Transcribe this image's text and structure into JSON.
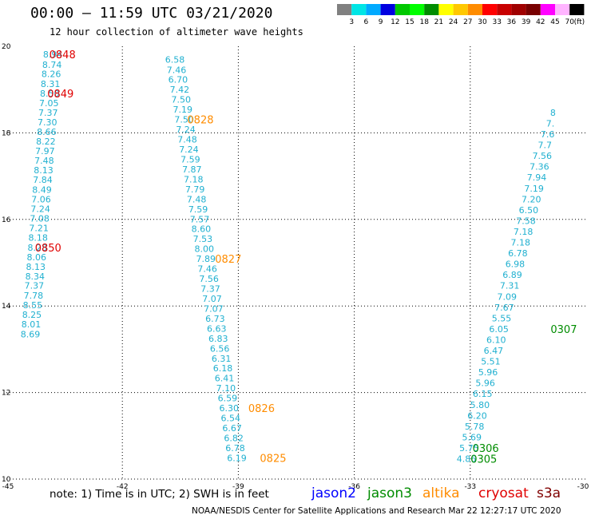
{
  "header": {
    "title": "00:00 – 11:59 UTC 03/21/2020",
    "subtitle": "12 hour collection of altimeter wave heights"
  },
  "legend_scale": {
    "labels": [
      "3",
      "6",
      "9",
      "12",
      "15",
      "18",
      "21",
      "24",
      "27",
      "30",
      "33",
      "36",
      "39",
      "42",
      "45",
      "70",
      "(ft)"
    ],
    "colors": [
      "#808080",
      "#00e5e5",
      "#00aaff",
      "#0000e0",
      "#00c800",
      "#00ff00",
      "#008c00",
      "#ffff00",
      "#ffc800",
      "#ff8c00",
      "#ff0000",
      "#c80000",
      "#a00000",
      "#780000",
      "#ff00ff",
      "#ffb4ff",
      "#000000"
    ]
  },
  "footer": {
    "note": "note:  1) Time is in UTC;  2) SWH is in feet",
    "missions": [
      {
        "name": "jason2",
        "color": "#0000ff"
      },
      {
        "name": "jason3",
        "color": "#008c00"
      },
      {
        "name": "altika",
        "color": "#ff8c00"
      },
      {
        "name": "cryosat",
        "color": "#e00000"
      },
      {
        "name": "s3a",
        "color": "#800000"
      }
    ],
    "credit": "NOAA/NESDIS Center for Satellite Applications and Research     Mar 22 12:27:17 UTC 2020"
  },
  "chart_data": {
    "type": "scatter",
    "title": "00:00 – 11:59 UTC 03/21/2020",
    "subtitle": "12 hour collection of altimeter wave heights",
    "xlabel": "",
    "ylabel": "",
    "xlim": [
      -45,
      -30
    ],
    "ylim": [
      10,
      20
    ],
    "x_ticks": [
      "-45",
      "-42",
      "-39",
      "-36",
      "-33",
      "-30"
    ],
    "y_ticks": [
      "20",
      "18",
      "16",
      "14",
      "12",
      "10"
    ],
    "grid": true,
    "value_color": "#20b0d0",
    "tracks": [
      {
        "name": "cryosat",
        "color": "#e00000",
        "points": [
          {
            "x": -43.8,
            "y": 19.82,
            "v": "8.94"
          },
          {
            "x": -43.82,
            "y": 19.58,
            "v": "8.74"
          },
          {
            "x": -43.84,
            "y": 19.36,
            "v": "8.26"
          },
          {
            "x": -43.86,
            "y": 19.13,
            "v": "8.31"
          },
          {
            "x": -43.88,
            "y": 18.91,
            "v": "8.50"
          },
          {
            "x": -43.9,
            "y": 18.69,
            "v": "7.05"
          },
          {
            "x": -43.92,
            "y": 18.47,
            "v": "7.37"
          },
          {
            "x": -43.94,
            "y": 18.25,
            "v": "7.30"
          },
          {
            "x": -43.96,
            "y": 18.03,
            "v": "8.66"
          },
          {
            "x": -43.98,
            "y": 17.8,
            "v": "8.22"
          },
          {
            "x": -44.0,
            "y": 17.58,
            "v": "7.97"
          },
          {
            "x": -44.02,
            "y": 17.36,
            "v": "7.48"
          },
          {
            "x": -44.04,
            "y": 17.14,
            "v": "8.13"
          },
          {
            "x": -44.06,
            "y": 16.92,
            "v": "7.84"
          },
          {
            "x": -44.08,
            "y": 16.69,
            "v": "8.49"
          },
          {
            "x": -44.1,
            "y": 16.47,
            "v": "7.06"
          },
          {
            "x": -44.12,
            "y": 16.25,
            "v": "7.24"
          },
          {
            "x": -44.14,
            "y": 16.02,
            "v": "7.08"
          },
          {
            "x": -44.16,
            "y": 15.8,
            "v": "7.21"
          },
          {
            "x": -44.18,
            "y": 15.58,
            "v": "8.18"
          },
          {
            "x": -44.2,
            "y": 15.35,
            "v": "8.28"
          },
          {
            "x": -44.22,
            "y": 15.13,
            "v": "8.06"
          },
          {
            "x": -44.24,
            "y": 14.91,
            "v": "8.13"
          },
          {
            "x": -44.26,
            "y": 14.69,
            "v": "8.34"
          },
          {
            "x": -44.28,
            "y": 14.47,
            "v": "7.37"
          },
          {
            "x": -44.3,
            "y": 14.24,
            "v": "7.78"
          },
          {
            "x": -44.32,
            "y": 14.02,
            "v": "8.55"
          },
          {
            "x": -44.34,
            "y": 13.8,
            "v": "8.25"
          },
          {
            "x": -44.36,
            "y": 13.58,
            "v": "8.01"
          },
          {
            "x": -44.38,
            "y": 13.35,
            "v": "8.69"
          }
        ],
        "times": [
          {
            "x": -43.55,
            "y": 19.82,
            "label": "0848"
          },
          {
            "x": -43.6,
            "y": 18.91,
            "label": "0849"
          },
          {
            "x": -43.92,
            "y": 15.35,
            "label": "0850"
          }
        ]
      },
      {
        "name": "altika",
        "color": "#ff8c00",
        "points": [
          {
            "x": -40.64,
            "y": 19.7,
            "v": "6.58"
          },
          {
            "x": -40.6,
            "y": 19.46,
            "v": "7.46"
          },
          {
            "x": -40.56,
            "y": 19.23,
            "v": "6.70"
          },
          {
            "x": -40.52,
            "y": 19.0,
            "v": "7.42"
          },
          {
            "x": -40.48,
            "y": 18.77,
            "v": "7.50"
          },
          {
            "x": -40.44,
            "y": 18.54,
            "v": "7.19"
          },
          {
            "x": -40.4,
            "y": 18.31,
            "v": "7.50"
          },
          {
            "x": -40.36,
            "y": 18.08,
            "v": "7.24"
          },
          {
            "x": -40.32,
            "y": 17.85,
            "v": "7.48"
          },
          {
            "x": -40.28,
            "y": 17.62,
            "v": "7.24"
          },
          {
            "x": -40.24,
            "y": 17.39,
            "v": "7.59"
          },
          {
            "x": -40.2,
            "y": 17.16,
            "v": "7.87"
          },
          {
            "x": -40.16,
            "y": 16.93,
            "v": "7.18"
          },
          {
            "x": -40.12,
            "y": 16.7,
            "v": "7.79"
          },
          {
            "x": -40.08,
            "y": 16.47,
            "v": "7.48"
          },
          {
            "x": -40.04,
            "y": 16.24,
            "v": "7.59"
          },
          {
            "x": -40.0,
            "y": 16.01,
            "v": "7.57"
          },
          {
            "x": -39.96,
            "y": 15.78,
            "v": "8.60"
          },
          {
            "x": -39.92,
            "y": 15.55,
            "v": "7.53"
          },
          {
            "x": -39.88,
            "y": 15.32,
            "v": "8.00"
          },
          {
            "x": -39.84,
            "y": 15.09,
            "v": "7.89"
          },
          {
            "x": -39.8,
            "y": 14.86,
            "v": "7.46"
          },
          {
            "x": -39.76,
            "y": 14.63,
            "v": "7.56"
          },
          {
            "x": -39.72,
            "y": 14.4,
            "v": "7.37"
          },
          {
            "x": -39.68,
            "y": 14.17,
            "v": "7.07"
          },
          {
            "x": -39.64,
            "y": 13.94,
            "v": "7.07"
          },
          {
            "x": -39.6,
            "y": 13.71,
            "v": "6.73"
          },
          {
            "x": -39.56,
            "y": 13.48,
            "v": "6.63"
          },
          {
            "x": -39.52,
            "y": 13.25,
            "v": "6.83"
          },
          {
            "x": -39.48,
            "y": 13.02,
            "v": "6.56"
          },
          {
            "x": -39.44,
            "y": 12.79,
            "v": "6.31"
          },
          {
            "x": -39.4,
            "y": 12.56,
            "v": "6.18"
          },
          {
            "x": -39.36,
            "y": 12.33,
            "v": "6.41"
          },
          {
            "x": -39.32,
            "y": 12.1,
            "v": "7.10"
          },
          {
            "x": -39.28,
            "y": 11.87,
            "v": "6.59"
          },
          {
            "x": -39.24,
            "y": 11.64,
            "v": "6.30"
          },
          {
            "x": -39.2,
            "y": 11.41,
            "v": "6.54"
          },
          {
            "x": -39.16,
            "y": 11.18,
            "v": "6.67"
          },
          {
            "x": -39.12,
            "y": 10.95,
            "v": "6.82"
          },
          {
            "x": -39.08,
            "y": 10.72,
            "v": "6.78"
          },
          {
            "x": -39.04,
            "y": 10.49,
            "v": "6.19"
          }
        ],
        "times": [
          {
            "x": -39.98,
            "y": 18.31,
            "label": "0828"
          },
          {
            "x": -39.26,
            "y": 15.09,
            "label": "0827"
          },
          {
            "x": -38.4,
            "y": 11.64,
            "label": "0826"
          },
          {
            "x": -38.1,
            "y": 10.49,
            "label": "0825"
          }
        ]
      },
      {
        "name": "jason3",
        "color": "#008c00",
        "points": [
          {
            "x": -33.1,
            "y": 10.47,
            "v": "4.86"
          },
          {
            "x": -33.03,
            "y": 10.72,
            "v": "5.75"
          },
          {
            "x": -32.96,
            "y": 10.97,
            "v": "5.69"
          },
          {
            "x": -32.89,
            "y": 11.22,
            "v": "5.78"
          },
          {
            "x": -32.82,
            "y": 11.47,
            "v": "6.20"
          },
          {
            "x": -32.75,
            "y": 11.72,
            "v": "5.80"
          },
          {
            "x": -32.68,
            "y": 11.97,
            "v": "6.15"
          },
          {
            "x": -32.61,
            "y": 12.22,
            "v": "5.96"
          },
          {
            "x": -32.54,
            "y": 12.47,
            "v": "5.96"
          },
          {
            "x": -32.47,
            "y": 12.72,
            "v": "5.51"
          },
          {
            "x": -32.4,
            "y": 12.97,
            "v": "6.47"
          },
          {
            "x": -32.33,
            "y": 13.22,
            "v": "6.10"
          },
          {
            "x": -32.26,
            "y": 13.47,
            "v": "6.05"
          },
          {
            "x": -32.19,
            "y": 13.72,
            "v": "5.55"
          },
          {
            "x": -32.12,
            "y": 13.97,
            "v": "7.67"
          },
          {
            "x": -32.05,
            "y": 14.22,
            "v": "7.09"
          },
          {
            "x": -31.98,
            "y": 14.47,
            "v": "7.31"
          },
          {
            "x": -31.91,
            "y": 14.72,
            "v": "6.89"
          },
          {
            "x": -31.84,
            "y": 14.97,
            "v": "6.98"
          },
          {
            "x": -31.77,
            "y": 15.22,
            "v": "6.78"
          },
          {
            "x": -31.7,
            "y": 15.47,
            "v": "7.18"
          },
          {
            "x": -31.63,
            "y": 15.72,
            "v": "7.18"
          },
          {
            "x": -31.56,
            "y": 15.97,
            "v": "7.58"
          },
          {
            "x": -31.49,
            "y": 16.22,
            "v": "6.50"
          },
          {
            "x": -31.42,
            "y": 16.47,
            "v": "7.20"
          },
          {
            "x": -31.35,
            "y": 16.72,
            "v": "7.19"
          },
          {
            "x": -31.28,
            "y": 16.97,
            "v": "7.94"
          },
          {
            "x": -31.21,
            "y": 17.22,
            "v": "7.36"
          },
          {
            "x": -31.14,
            "y": 17.47,
            "v": "7.56"
          },
          {
            "x": -31.07,
            "y": 17.72,
            "v": "7.7"
          },
          {
            "x": -31.0,
            "y": 17.97,
            "v": "7.6"
          },
          {
            "x": -30.93,
            "y": 18.22,
            "v": "7."
          },
          {
            "x": -30.86,
            "y": 18.47,
            "v": "8"
          }
        ],
        "times": [
          {
            "x": -32.65,
            "y": 10.47,
            "label": "0305"
          },
          {
            "x": -32.6,
            "y": 10.72,
            "label": "0306"
          },
          {
            "x": -30.58,
            "y": 13.47,
            "label": "0307"
          }
        ]
      }
    ]
  }
}
